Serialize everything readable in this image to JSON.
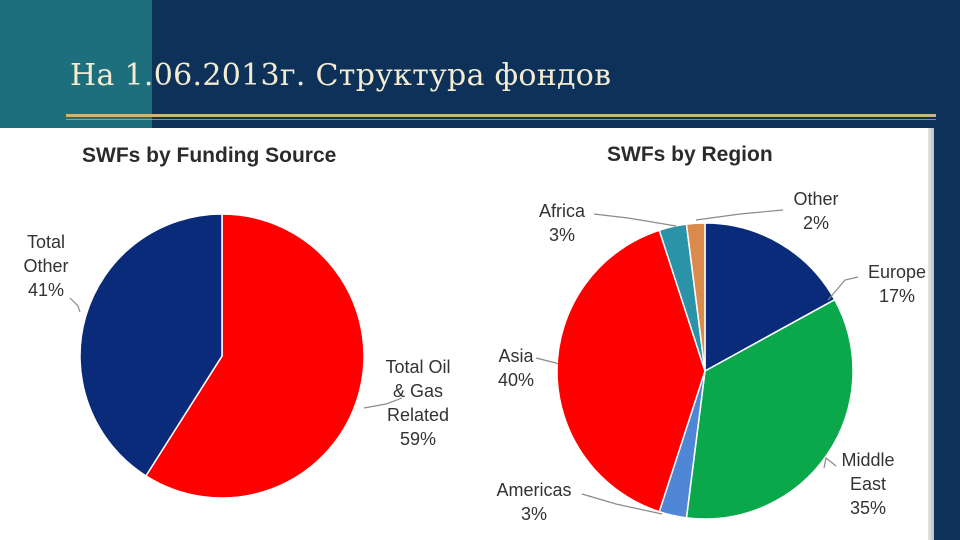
{
  "slide": {
    "title": "На 1.06.2013г. Структура фондов"
  },
  "chart_data": [
    {
      "type": "pie",
      "title": "SWFs by Funding Source",
      "slices": [
        {
          "label_lines": [
            "Total Oil",
            "& Gas",
            "Related"
          ],
          "percent_label": "59%",
          "value": 59,
          "color": "#ff0000"
        },
        {
          "label_lines": [
            "Total",
            "Other"
          ],
          "percent_label": "41%",
          "value": 41,
          "color": "#0a2a7a"
        }
      ]
    },
    {
      "type": "pie",
      "title": "SWFs by Region",
      "slices": [
        {
          "label_lines": [
            "Europe"
          ],
          "percent_label": "17%",
          "value": 17,
          "color": "#0a2a7a"
        },
        {
          "label_lines": [
            "Middle",
            "East"
          ],
          "percent_label": "35%",
          "value": 35,
          "color": "#0aa84a"
        },
        {
          "label_lines": [
            "Americas"
          ],
          "percent_label": "3%",
          "value": 3,
          "color": "#4f86d6"
        },
        {
          "label_lines": [
            "Asia"
          ],
          "percent_label": "40%",
          "value": 40,
          "color": "#ff0000"
        },
        {
          "label_lines": [
            "Africa"
          ],
          "percent_label": "3%",
          "value": 3,
          "color": "#2b93a8"
        },
        {
          "label_lines": [
            "Other"
          ],
          "percent_label": "2%",
          "value": 2,
          "color": "#d98a4c"
        }
      ]
    }
  ]
}
